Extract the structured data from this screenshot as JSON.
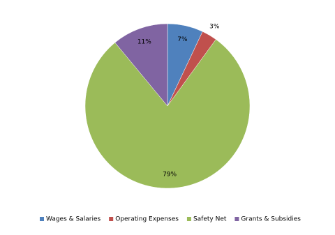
{
  "chart_data": {
    "type": "pie",
    "categories": [
      "Wages & Salaries",
      "Operating Expenses",
      "Safety Net",
      "Grants & Subsidies"
    ],
    "values": [
      7,
      3,
      79,
      11
    ],
    "value_labels": [
      "7%",
      "3%",
      "79%",
      "11%"
    ],
    "colors": [
      "#4f81bd",
      "#c0504d",
      "#9bbb59",
      "#8064a2"
    ],
    "legend": "bottom"
  }
}
